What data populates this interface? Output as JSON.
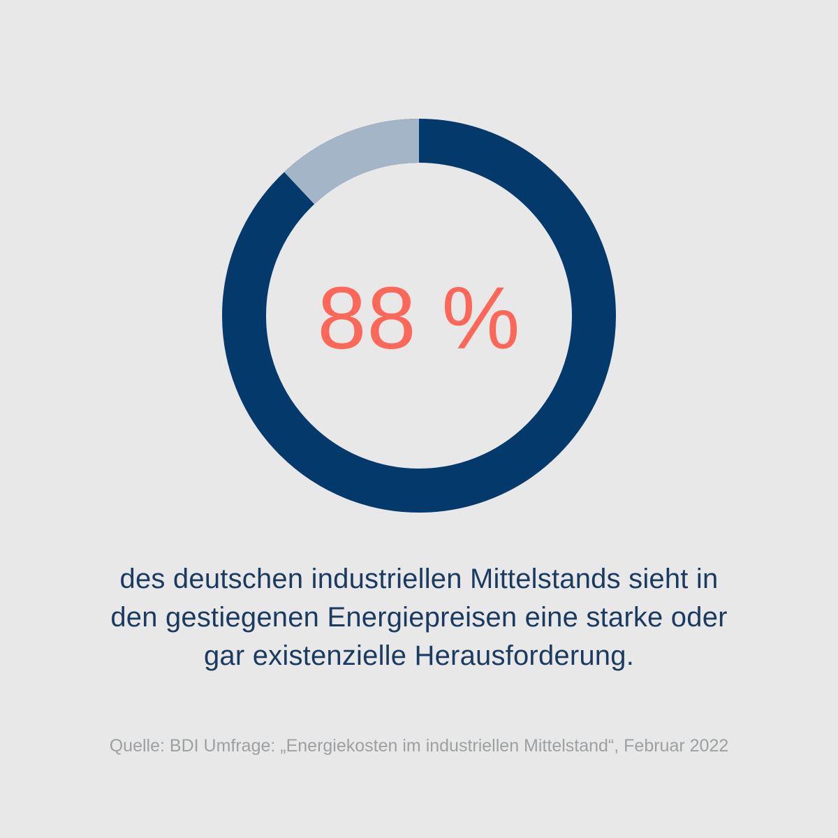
{
  "chart_data": {
    "type": "pie",
    "style": "donut",
    "values": [
      88,
      12
    ],
    "center_label": "88 %",
    "legend": "none",
    "grid": "off",
    "direction_of_remainder_segment": "counterclockwise-from-top",
    "ring_thickness_px": 63,
    "colors": {
      "primary": "#04396C",
      "remainder": "#A4B5C8",
      "center_label": "#FB685A"
    }
  },
  "caption": {
    "lines": [
      "des deutschen industriellen Mittelstands sieht in",
      "den gestiegenen Energiepreisen eine starke oder",
      "gar existenzielle Herausforderung."
    ],
    "color": "#1A3A5F"
  },
  "source": {
    "text": "Quelle: BDI Umfrage: „Energiekosten im industriellen Mittelstand“, Februar 2022",
    "color": "#9DA0A3"
  },
  "background": "#E8E8E8"
}
